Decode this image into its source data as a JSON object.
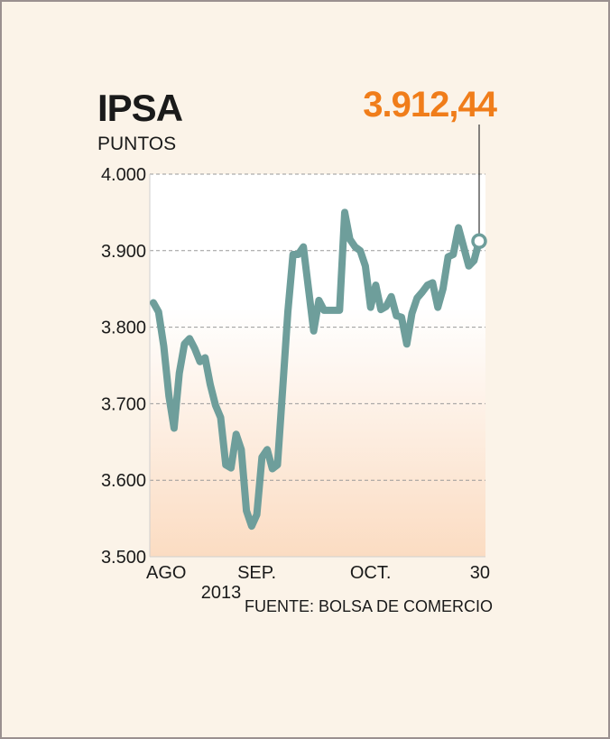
{
  "header": {
    "title": "IPSA",
    "unit": "PUNTOS",
    "last_value": "3.912,44"
  },
  "footer": {
    "source": "FUENTE: BOLSA DE COMERCIO"
  },
  "colors": {
    "line": "#6e9e9b",
    "accent": "#f07d1a",
    "grid": "#9a9a9a",
    "background": "#fbf3e8"
  },
  "chart_data": {
    "type": "line",
    "title": "IPSA",
    "ylabel": "PUNTOS",
    "xlabel": "",
    "ylim": [
      3500,
      4000
    ],
    "yticks": [
      {
        "value": 4000,
        "label": "4.000"
      },
      {
        "value": 3900,
        "label": "3.900"
      },
      {
        "value": 3800,
        "label": "3.800"
      },
      {
        "value": 3700,
        "label": "3.700"
      },
      {
        "value": 3600,
        "label": "3.600"
      },
      {
        "value": 3500,
        "label": "3.500"
      }
    ],
    "xticks": [
      {
        "index": 0,
        "label": "AGO"
      },
      {
        "index": 20,
        "label": "SEP."
      },
      {
        "index": 42,
        "label": "OCT."
      },
      {
        "index": 63,
        "label": "30"
      }
    ],
    "year_label": "2013",
    "grid": true,
    "series": [
      {
        "values": [
          3832,
          3820,
          3775,
          3710,
          3668,
          3740,
          3778,
          3785,
          3772,
          3755,
          3760,
          3725,
          3698,
          3682,
          3620,
          3616,
          3660,
          3640,
          3560,
          3540,
          3555,
          3630,
          3640,
          3615,
          3620,
          3720,
          3820,
          3895,
          3895,
          3905,
          3850,
          3795,
          3835,
          3822,
          3822,
          3822,
          3822,
          3950,
          3915,
          3905,
          3900,
          3880,
          3826,
          3855,
          3823,
          3827,
          3840,
          3815,
          3813,
          3778,
          3818,
          3838,
          3846,
          3855,
          3858,
          3826,
          3850,
          3892,
          3895,
          3930,
          3905,
          3880,
          3887,
          3912.44
        ]
      }
    ]
  }
}
